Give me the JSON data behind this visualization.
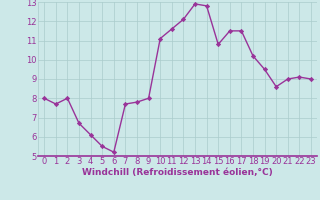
{
  "x": [
    0,
    1,
    2,
    3,
    4,
    5,
    6,
    7,
    8,
    9,
    10,
    11,
    12,
    13,
    14,
    15,
    16,
    17,
    18,
    19,
    20,
    21,
    22,
    23
  ],
  "y": [
    8.0,
    7.7,
    8.0,
    6.7,
    6.1,
    5.5,
    5.2,
    7.7,
    7.8,
    8.0,
    11.1,
    11.6,
    12.1,
    12.9,
    12.8,
    10.8,
    11.5,
    11.5,
    10.2,
    9.5,
    8.6,
    9.0,
    9.1,
    9.0
  ],
  "line_color": "#993399",
  "marker": "D",
  "marker_size": 2.2,
  "linewidth": 1.0,
  "bg_color": "#cce8e8",
  "grid_color": "#aacccc",
  "xlabel": "Windchill (Refroidissement éolien,°C)",
  "xlabel_color": "#993399",
  "xlabel_fontsize": 6.5,
  "tick_color": "#993399",
  "tick_fontsize": 6.0,
  "ylim": [
    5,
    13
  ],
  "xlim": [
    -0.5,
    23.5
  ],
  "yticks": [
    5,
    6,
    7,
    8,
    9,
    10,
    11,
    12,
    13
  ],
  "xticks": [
    0,
    1,
    2,
    3,
    4,
    5,
    6,
    7,
    8,
    9,
    10,
    11,
    12,
    13,
    14,
    15,
    16,
    17,
    18,
    19,
    20,
    21,
    22,
    23
  ],
  "spine_color": "#993399"
}
